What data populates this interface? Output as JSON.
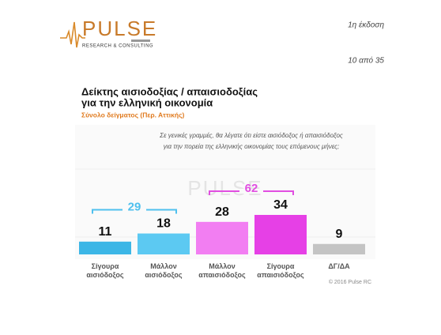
{
  "header": {
    "logo": "PULSE",
    "logo_tagline": "RESEARCH & CONSULTING",
    "edition": "1η έκδοση",
    "page": "10 από 35"
  },
  "chart_data": {
    "type": "bar",
    "title": [
      "Δείκτης αισιοδοξίας / απαισιοδοξίας",
      "για την ελληνική οικονομία"
    ],
    "subtitle": "Σύνολο δείγματος (Περ. Αττικής)",
    "question": [
      "Σε γενικές γραμμές, θα λέγατε ότι είστε αισιόδοξος ή απαισιόδοξος",
      "για την πορεία της ελληνικής οικονομίας τους επόμενους μήνες;"
    ],
    "categories": [
      "Σίγουρα αισιόδοξος",
      "Μάλλον αισιόδοξος",
      "Μάλλον απαισιόδοξος",
      "Σίγουρα απαισιόδοξος",
      "ΔΓ/ΔΑ"
    ],
    "values": [
      11,
      18,
      28,
      34,
      9
    ],
    "colors": [
      "#3cb6e6",
      "#5cc9f2",
      "#f27ef2",
      "#e640e6",
      "#c4c4c4"
    ],
    "groups": [
      {
        "value": 29,
        "color": "#4fc0ee",
        "members": [
          0,
          1
        ]
      },
      {
        "value": 62,
        "color": "#e14ee1",
        "members": [
          2,
          3
        ]
      }
    ],
    "watermark": "PULSE",
    "source": "© 2016 Pulse RC"
  }
}
